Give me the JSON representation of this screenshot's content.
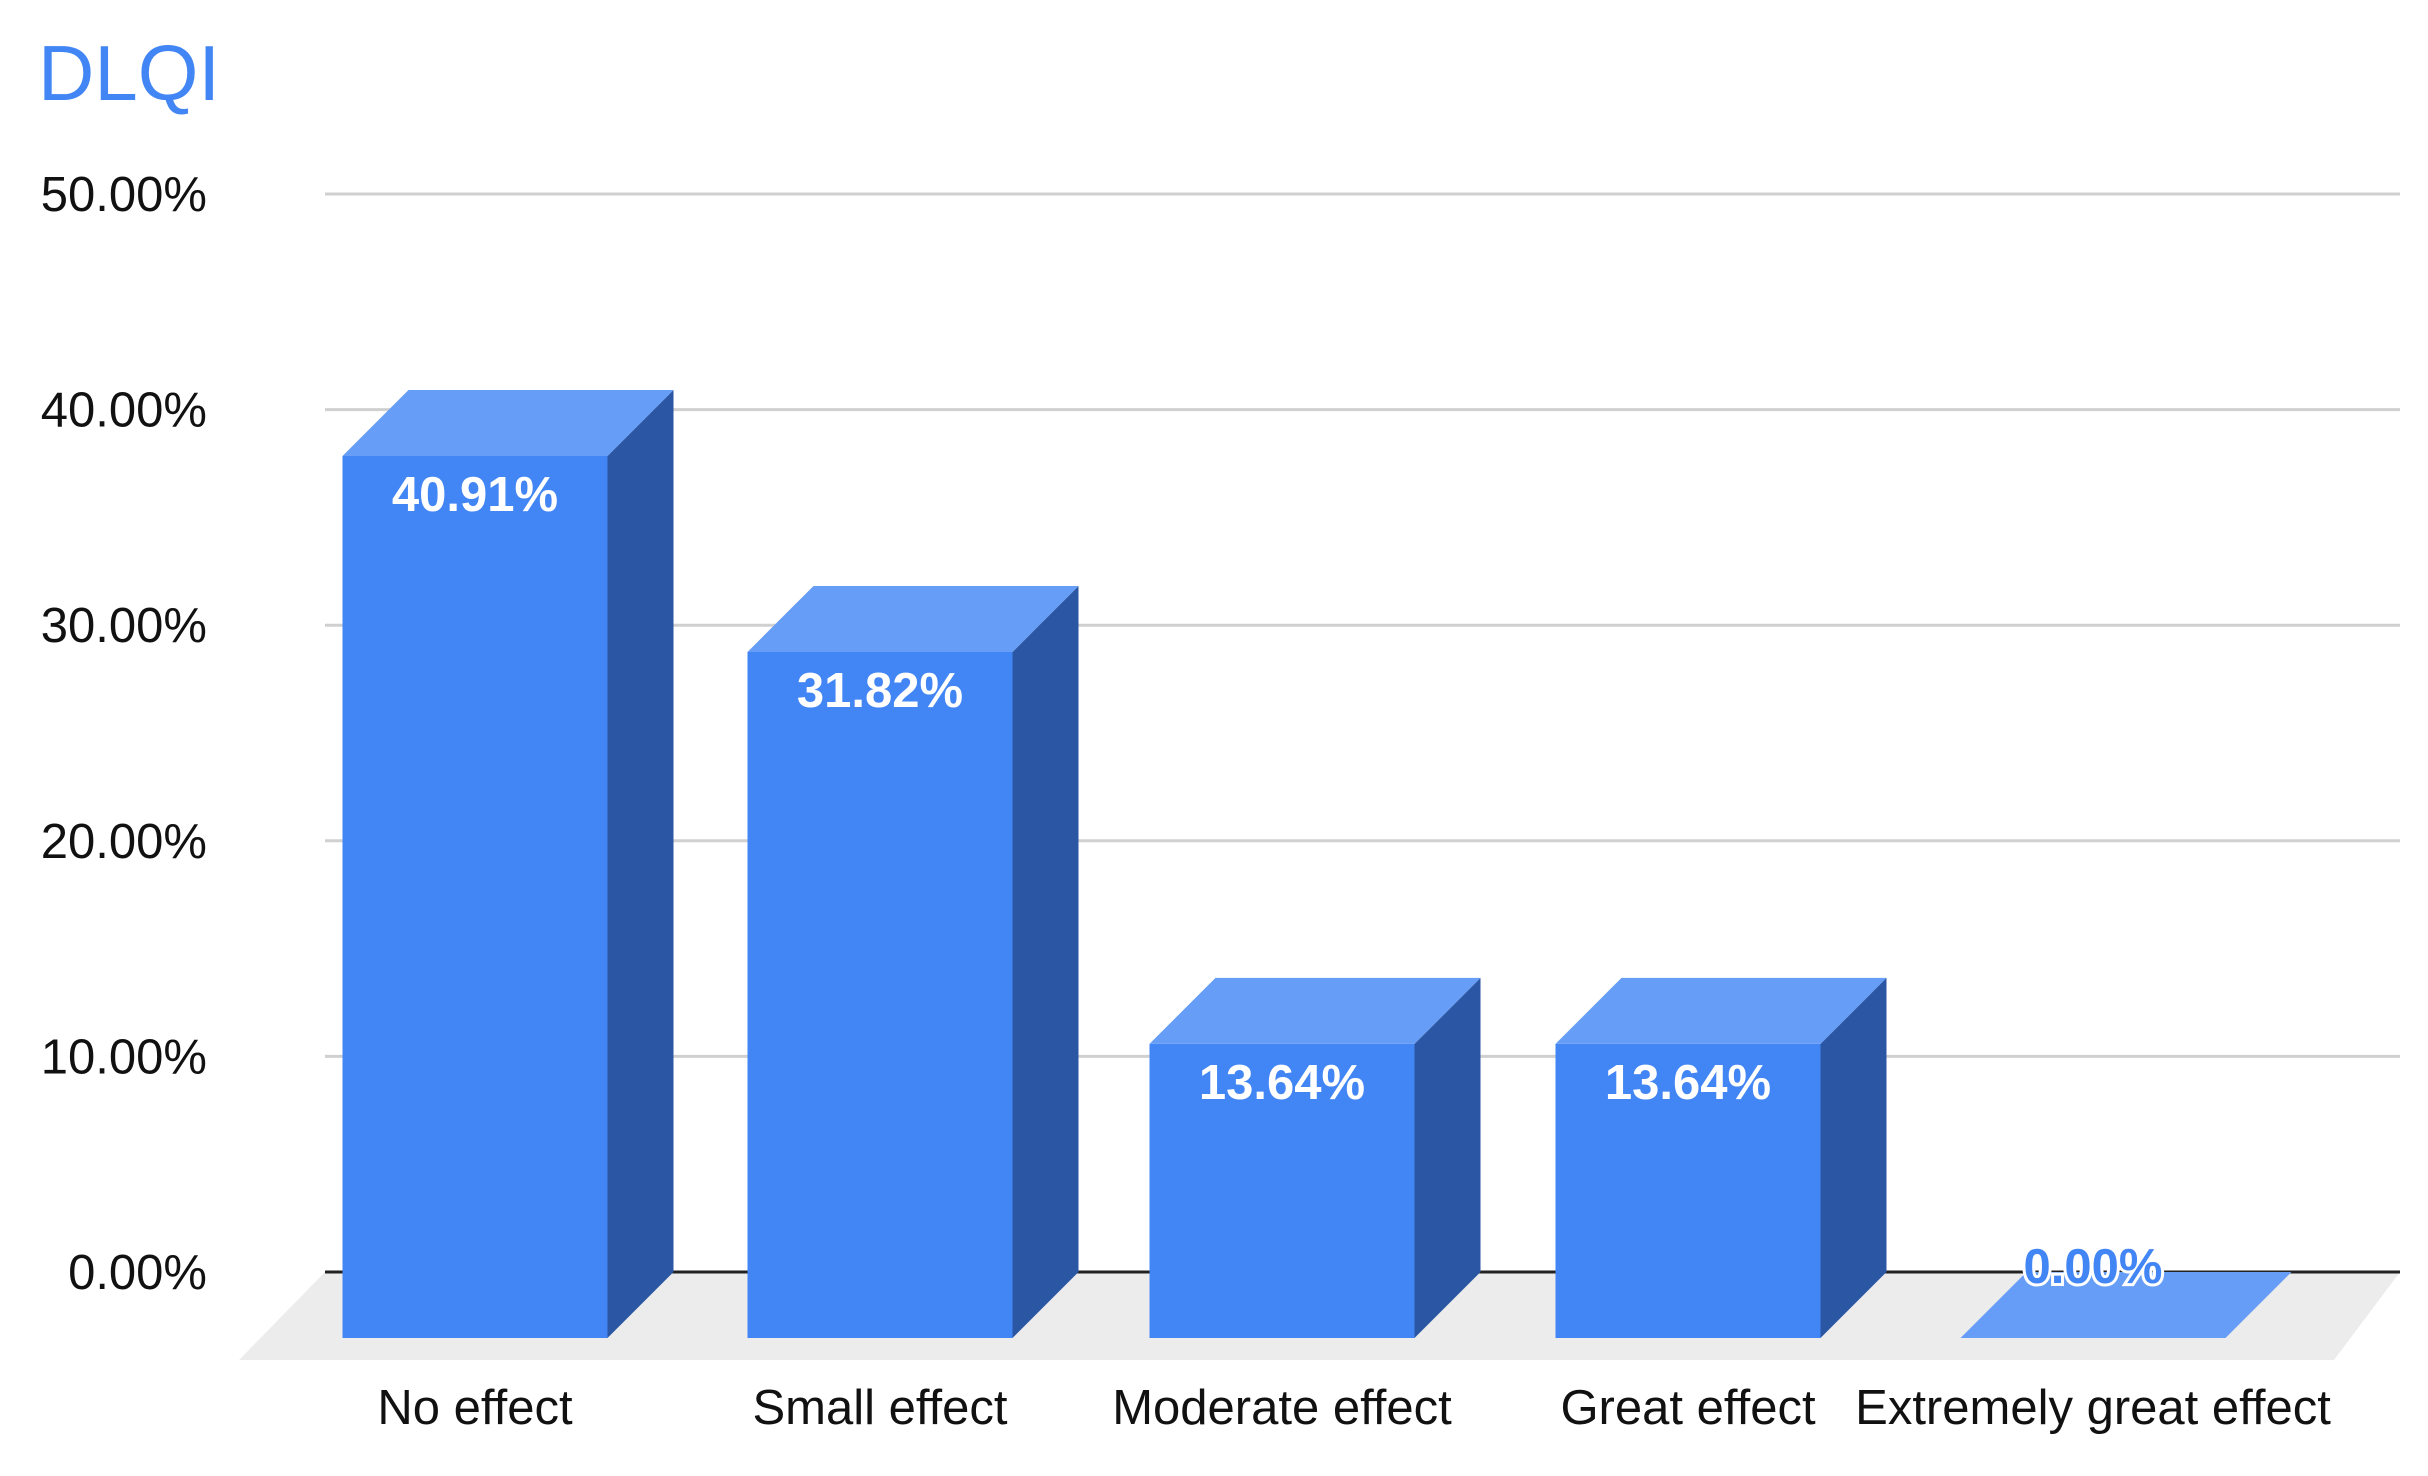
{
  "colors": {
    "title": "#4285f4",
    "bar_front": "#4285f4",
    "bar_top": "#669df6",
    "bar_side": "#2a56a3",
    "gridline": "#d0d0d0",
    "axis_line": "#222222",
    "floor": "#ececec",
    "label_inside": "#ffffff",
    "label_outside": "#4285f4"
  },
  "chart_data": {
    "type": "bar",
    "style": "3d",
    "title": "DLQI",
    "xlabel": "",
    "ylabel": "",
    "categories": [
      "No effect",
      "Small effect",
      "Moderate effect",
      "Great effect",
      "Extremely great effect"
    ],
    "values": [
      40.91,
      31.82,
      13.64,
      13.64,
      0.0
    ],
    "data_labels": [
      "40.91%",
      "31.82%",
      "13.64%",
      "13.64%",
      "0.00%"
    ],
    "ylim": [
      0,
      50
    ],
    "yticks": [
      0,
      10,
      20,
      30,
      40,
      50
    ],
    "ytick_labels": [
      "0.00%",
      "10.00%",
      "20.00%",
      "30.00%",
      "40.00%",
      "50.00%"
    ],
    "grid": true,
    "legend": "none"
  }
}
